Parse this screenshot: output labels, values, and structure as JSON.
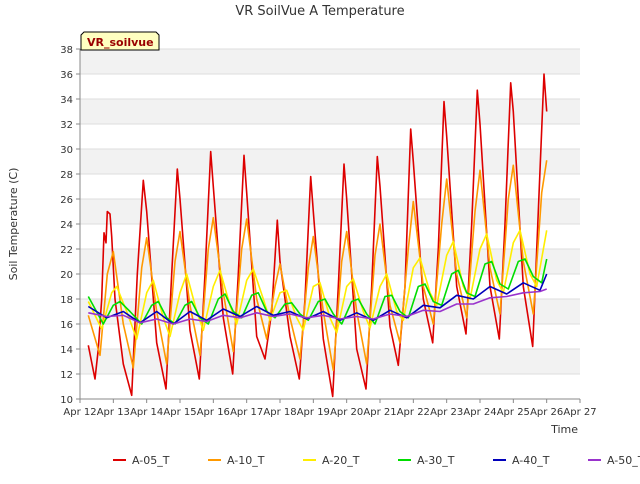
{
  "chart_data": {
    "type": "line",
    "title": "VR SoilVue A Temperature",
    "xlabel": "Time",
    "ylabel": "Soil Temperature (C)",
    "annotation": "VR_soilvue",
    "ylim": [
      10,
      38
    ],
    "yticks": [
      10,
      12,
      14,
      16,
      18,
      20,
      22,
      24,
      26,
      28,
      30,
      32,
      34,
      36,
      38
    ],
    "xlim": [
      12,
      27
    ],
    "xticks": [
      {
        "value": 12,
        "label": "Apr 12"
      },
      {
        "value": 13,
        "label": "Apr 13"
      },
      {
        "value": 14,
        "label": "Apr 14"
      },
      {
        "value": 15,
        "label": "Apr 15"
      },
      {
        "value": 16,
        "label": "Apr 16"
      },
      {
        "value": 17,
        "label": "Apr 17"
      },
      {
        "value": 18,
        "label": "Apr 18"
      },
      {
        "value": 19,
        "label": "Apr 19"
      },
      {
        "value": 20,
        "label": "Apr 20"
      },
      {
        "value": 21,
        "label": "Apr 21"
      },
      {
        "value": 22,
        "label": "Apr 22"
      },
      {
        "value": 23,
        "label": "Apr 23"
      },
      {
        "value": 24,
        "label": "Apr 24"
      },
      {
        "value": 25,
        "label": "Apr 25"
      },
      {
        "value": 26,
        "label": "Apr 26"
      },
      {
        "value": 27,
        "label": "Apr 27"
      }
    ],
    "grid": true,
    "legend_position": "bottom",
    "series": [
      {
        "name": "A-05_T",
        "color": "#dd0000",
        "x": [
          12.25,
          12.45,
          12.55,
          12.65,
          12.72,
          12.78,
          12.82,
          12.9,
          12.95,
          13.05,
          13.3,
          13.55,
          13.72,
          13.9,
          14.0,
          14.3,
          14.58,
          14.75,
          14.92,
          15.0,
          15.3,
          15.58,
          15.75,
          15.92,
          16.0,
          16.3,
          16.58,
          16.75,
          16.92,
          17.0,
          17.3,
          17.55,
          17.75,
          17.92,
          18.0,
          18.3,
          18.58,
          18.75,
          18.92,
          19.0,
          19.3,
          19.58,
          19.75,
          19.92,
          20.0,
          20.3,
          20.58,
          20.75,
          20.92,
          21.0,
          21.3,
          21.55,
          21.75,
          21.92,
          22.0,
          22.3,
          22.58,
          22.75,
          22.92,
          23.0,
          23.3,
          23.58,
          23.75,
          23.92,
          24.0,
          24.3,
          24.58,
          24.75,
          24.92,
          25.0,
          25.3,
          25.58,
          25.75,
          25.92,
          26.0
        ],
        "y": [
          14.3,
          11.6,
          14.0,
          18.0,
          23.3,
          22.5,
          25.0,
          24.8,
          23.0,
          18.0,
          12.8,
          10.3,
          20.0,
          27.5,
          25.0,
          14.5,
          10.8,
          20.0,
          28.4,
          26.0,
          15.5,
          11.6,
          20.0,
          29.8,
          27.0,
          16.5,
          12.0,
          20.0,
          29.5,
          26.5,
          15.0,
          13.2,
          17.0,
          24.3,
          21.0,
          15.0,
          11.6,
          18.0,
          27.8,
          25.0,
          14.8,
          10.2,
          19.0,
          28.8,
          26.0,
          14.0,
          10.8,
          19.0,
          29.4,
          27.0,
          15.8,
          12.7,
          19.0,
          31.6,
          29.0,
          18.0,
          14.5,
          22.0,
          33.8,
          31.0,
          19.0,
          15.2,
          24.0,
          34.7,
          32.0,
          19.0,
          14.8,
          24.0,
          35.3,
          33.0,
          19.0,
          14.2,
          25.0,
          36.0,
          33.0
        ]
      },
      {
        "name": "A-10_T",
        "color": "#ff9900",
        "x": [
          12.25,
          12.6,
          12.82,
          13.0,
          13.3,
          13.6,
          13.85,
          14.0,
          14.3,
          14.6,
          14.85,
          15.0,
          15.3,
          15.6,
          15.85,
          16.0,
          16.3,
          16.6,
          16.85,
          17.0,
          17.3,
          17.6,
          17.85,
          18.0,
          18.3,
          18.6,
          18.85,
          19.0,
          19.3,
          19.6,
          19.85,
          20.0,
          20.3,
          20.6,
          20.85,
          21.0,
          21.3,
          21.6,
          21.85,
          22.0,
          22.3,
          22.6,
          22.85,
          23.0,
          23.3,
          23.6,
          23.85,
          24.0,
          24.3,
          24.6,
          24.85,
          25.0,
          25.3,
          25.6,
          25.85,
          26.0
        ],
        "y": [
          16.7,
          13.5,
          20.0,
          21.8,
          16.0,
          12.5,
          20.5,
          22.9,
          17.0,
          12.8,
          21.0,
          23.4,
          17.5,
          13.5,
          22.0,
          24.5,
          18.5,
          13.8,
          22.0,
          24.4,
          18.0,
          14.8,
          19.0,
          20.8,
          16.5,
          13.2,
          20.5,
          23.0,
          17.0,
          12.3,
          21.0,
          23.4,
          17.0,
          12.8,
          21.5,
          24.0,
          17.5,
          14.5,
          22.0,
          25.8,
          19.0,
          16.0,
          24.0,
          27.6,
          20.0,
          16.5,
          25.0,
          28.3,
          20.5,
          16.8,
          26.0,
          28.7,
          21.0,
          16.8,
          26.5,
          29.1
        ]
      },
      {
        "name": "A-20_T",
        "color": "#ffee00",
        "x": [
          12.25,
          12.65,
          12.95,
          13.1,
          13.4,
          13.7,
          14.0,
          14.2,
          14.5,
          14.7,
          15.0,
          15.2,
          15.5,
          15.7,
          16.0,
          16.2,
          16.5,
          16.7,
          17.0,
          17.2,
          17.5,
          17.7,
          18.0,
          18.2,
          18.5,
          18.7,
          19.0,
          19.2,
          19.5,
          19.7,
          20.0,
          20.2,
          20.5,
          20.7,
          21.0,
          21.2,
          21.5,
          21.7,
          22.0,
          22.2,
          22.5,
          22.7,
          23.0,
          23.2,
          23.5,
          23.7,
          24.0,
          24.2,
          24.5,
          24.7,
          25.0,
          25.2,
          25.5,
          25.7,
          26.0
        ],
        "y": [
          17.8,
          15.6,
          18.5,
          19.0,
          17.0,
          14.8,
          18.5,
          19.5,
          16.5,
          15.0,
          18.5,
          20.0,
          17.0,
          15.5,
          19.0,
          20.3,
          17.5,
          16.0,
          19.5,
          20.4,
          18.0,
          16.3,
          18.5,
          18.7,
          16.5,
          15.5,
          19.0,
          19.3,
          16.5,
          15.3,
          19.0,
          19.6,
          17.0,
          15.7,
          19.0,
          20.0,
          17.0,
          16.3,
          20.5,
          21.3,
          18.5,
          17.5,
          21.5,
          22.6,
          19.0,
          18.0,
          22.0,
          23.2,
          19.5,
          18.5,
          22.5,
          23.5,
          20.0,
          19.0,
          23.5
        ]
      },
      {
        "name": "A-30_T",
        "color": "#00dd00",
        "x": [
          12.25,
          12.7,
          13.0,
          13.2,
          13.5,
          13.85,
          14.15,
          14.35,
          14.6,
          14.85,
          15.15,
          15.35,
          15.6,
          15.85,
          16.15,
          16.35,
          16.6,
          16.85,
          17.15,
          17.35,
          17.6,
          17.85,
          18.15,
          18.35,
          18.6,
          18.85,
          19.15,
          19.35,
          19.6,
          19.85,
          20.15,
          20.35,
          20.6,
          20.85,
          21.15,
          21.35,
          21.6,
          21.85,
          22.15,
          22.35,
          22.6,
          22.85,
          23.15,
          23.35,
          23.6,
          23.85,
          24.15,
          24.35,
          24.6,
          24.85,
          25.15,
          25.35,
          25.6,
          25.85,
          26.0
        ],
        "y": [
          18.2,
          16.0,
          17.5,
          17.8,
          17.0,
          16.0,
          17.5,
          17.8,
          16.5,
          16.0,
          17.5,
          17.8,
          16.5,
          16.0,
          18.0,
          18.4,
          17.0,
          16.5,
          18.3,
          18.5,
          17.0,
          16.5,
          17.6,
          17.7,
          16.8,
          16.3,
          17.8,
          18.0,
          16.8,
          16.0,
          17.8,
          18.0,
          16.8,
          16.0,
          18.2,
          18.3,
          17.0,
          16.5,
          19.0,
          19.2,
          17.8,
          17.5,
          20.0,
          20.3,
          18.5,
          18.2,
          20.8,
          21.0,
          19.2,
          18.8,
          21.0,
          21.2,
          19.8,
          19.3,
          21.2
        ]
      },
      {
        "name": "A-40_T",
        "color": "#0000bb",
        "x": [
          12.25,
          12.8,
          13.3,
          13.8,
          14.3,
          14.8,
          15.3,
          15.8,
          16.3,
          16.8,
          17.3,
          17.8,
          18.3,
          18.8,
          19.3,
          19.8,
          20.3,
          20.8,
          21.3,
          21.8,
          22.3,
          22.8,
          23.3,
          23.8,
          24.3,
          24.8,
          25.3,
          25.8,
          26.0
        ],
        "y": [
          17.4,
          16.5,
          17.0,
          16.1,
          17.0,
          16.0,
          17.0,
          16.3,
          17.2,
          16.6,
          17.4,
          16.7,
          17.0,
          16.4,
          17.0,
          16.3,
          16.9,
          16.3,
          17.1,
          16.5,
          17.5,
          17.3,
          18.3,
          18.0,
          19.0,
          18.4,
          19.3,
          18.7,
          20.0
        ]
      },
      {
        "name": "A-50_T",
        "color": "#9933cc",
        "x": [
          12.25,
          12.8,
          13.3,
          13.8,
          14.3,
          14.8,
          15.3,
          15.8,
          16.3,
          16.8,
          17.3,
          17.8,
          18.3,
          18.8,
          19.3,
          19.8,
          20.3,
          20.8,
          21.3,
          21.8,
          22.3,
          22.8,
          23.3,
          23.8,
          24.3,
          24.8,
          25.3,
          25.8,
          26.0
        ],
        "y": [
          16.9,
          16.6,
          16.7,
          16.1,
          16.4,
          16.0,
          16.4,
          16.2,
          16.7,
          16.5,
          16.9,
          16.6,
          16.8,
          16.5,
          16.7,
          16.4,
          16.6,
          16.4,
          16.8,
          16.6,
          17.1,
          17.0,
          17.6,
          17.6,
          18.1,
          18.2,
          18.5,
          18.6,
          18.8
        ]
      }
    ]
  }
}
